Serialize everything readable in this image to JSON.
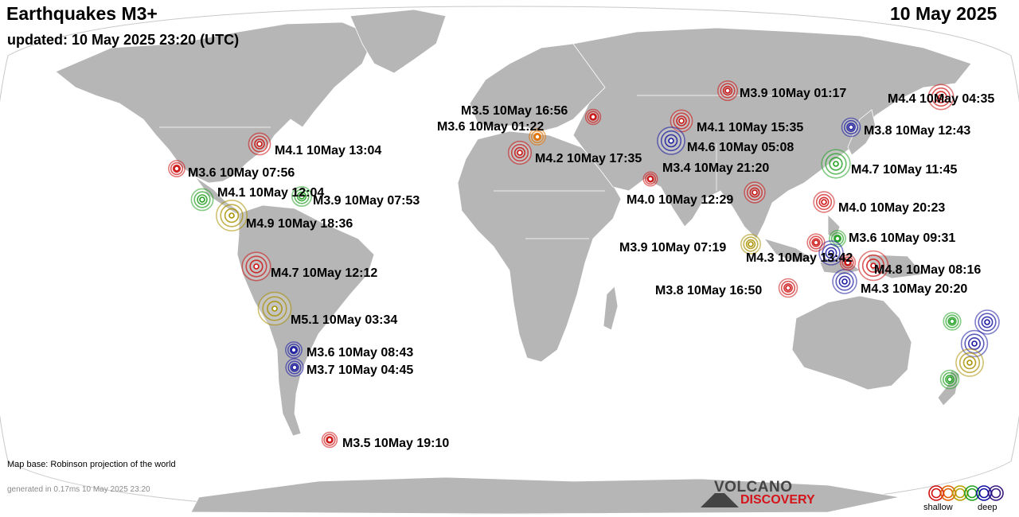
{
  "header": {
    "title": "Earthquakes M3+",
    "updated": "updated: 10 May 2025 23:20 (UTC)",
    "date": "10 May 2025"
  },
  "footer": {
    "map_base": "Map base: Robinson projection of the world",
    "generated": "generated in 0.17ms 10 May 2025 23:20"
  },
  "logo": {
    "line1": "VOLCANO",
    "line2": "DISCOVERY"
  },
  "legend": {
    "shallow_label": "shallow",
    "deep_label": "deep",
    "depth_colors": [
      "#d01010",
      "#e06000",
      "#b8a000",
      "#20a020",
      "#1010a0",
      "#3a1a80"
    ]
  },
  "colors": {
    "land": "#b6b6b6",
    "ocean": "#ffffff",
    "shallow": "#cc1111",
    "orange": "#e07000",
    "olive": "#a89000",
    "green": "#22a022",
    "deep": "#1818a0"
  },
  "quakes": [
    {
      "label": "M3.9 10May 01:17",
      "mag": 3.9,
      "depth": "shallow"
    },
    {
      "label": "M4.4 10May 04:35",
      "mag": 4.4,
      "depth": "shallow"
    },
    {
      "label": "M3.5 10May 16:56",
      "mag": 3.5,
      "depth": "shallow"
    },
    {
      "label": "M3.6 10May 01:22",
      "mag": 3.6,
      "depth": "orange"
    },
    {
      "label": "M4.1 10May 15:35",
      "mag": 4.1,
      "depth": "shallow"
    },
    {
      "label": "M3.8 10May 12:43",
      "mag": 3.8,
      "depth": "deep"
    },
    {
      "label": "M4.6 10May 05:08",
      "mag": 4.6,
      "depth": "deep"
    },
    {
      "label": "M4.2 10May 17:35",
      "mag": 4.2,
      "depth": "shallow"
    },
    {
      "label": "M3.4 10May 21:20",
      "mag": 3.4,
      "depth": "shallow"
    },
    {
      "label": "M4.7 10May 11:45",
      "mag": 4.7,
      "depth": "green"
    },
    {
      "label": "M4.0 10May 12:29",
      "mag": 4.0,
      "depth": "shallow"
    },
    {
      "label": "M4.0 10May 20:23",
      "mag": 4.0,
      "depth": "shallow"
    },
    {
      "label": "M3.6 10May 09:31",
      "mag": 3.6,
      "depth": "green"
    },
    {
      "label": "M3.9 10May 07:19",
      "mag": 3.9,
      "depth": "olive"
    },
    {
      "label": "M4.3 10May 13:42",
      "mag": 4.3,
      "depth": "deep"
    },
    {
      "label": "M4.8 10May 08:16",
      "mag": 4.8,
      "depth": "shallow"
    },
    {
      "label": "M4.3 10May 20:20",
      "mag": 4.3,
      "depth": "deep"
    },
    {
      "label": "M3.8 10May 16:50",
      "mag": 3.8,
      "depth": "shallow"
    },
    {
      "label": "M4.1 10May 13:04",
      "mag": 4.1,
      "depth": "shallow"
    },
    {
      "label": "M3.6 10May 07:56",
      "mag": 3.6,
      "depth": "shallow"
    },
    {
      "label": "M4.1 10May 12:04",
      "mag": 4.1,
      "depth": "green"
    },
    {
      "label": "M3.9 10May 07:53",
      "mag": 3.9,
      "depth": "green"
    },
    {
      "label": "M4.9 10May 18:36",
      "mag": 4.9,
      "depth": "olive"
    },
    {
      "label": "M4.7 10May 12:12",
      "mag": 4.7,
      "depth": "shallow"
    },
    {
      "label": "M5.1 10May 03:34",
      "mag": 5.1,
      "depth": "olive"
    },
    {
      "label": "M3.6 10May 08:43",
      "mag": 3.6,
      "depth": "deep"
    },
    {
      "label": "M3.7 10May 04:45",
      "mag": 3.7,
      "depth": "deep"
    },
    {
      "label": "M3.5 10May 19:10",
      "mag": 3.5,
      "depth": "shallow"
    }
  ],
  "unlabeled_quakes": [
    {
      "mag": 3.7,
      "depth": "green"
    },
    {
      "mag": 4.3,
      "depth": "deep"
    },
    {
      "mag": 4.5,
      "depth": "deep"
    },
    {
      "mag": 4.6,
      "depth": "olive"
    },
    {
      "mag": 3.8,
      "depth": "green"
    },
    {
      "mag": 3.7,
      "depth": "shallow"
    },
    {
      "mag": 3.5,
      "depth": "shallow"
    }
  ]
}
